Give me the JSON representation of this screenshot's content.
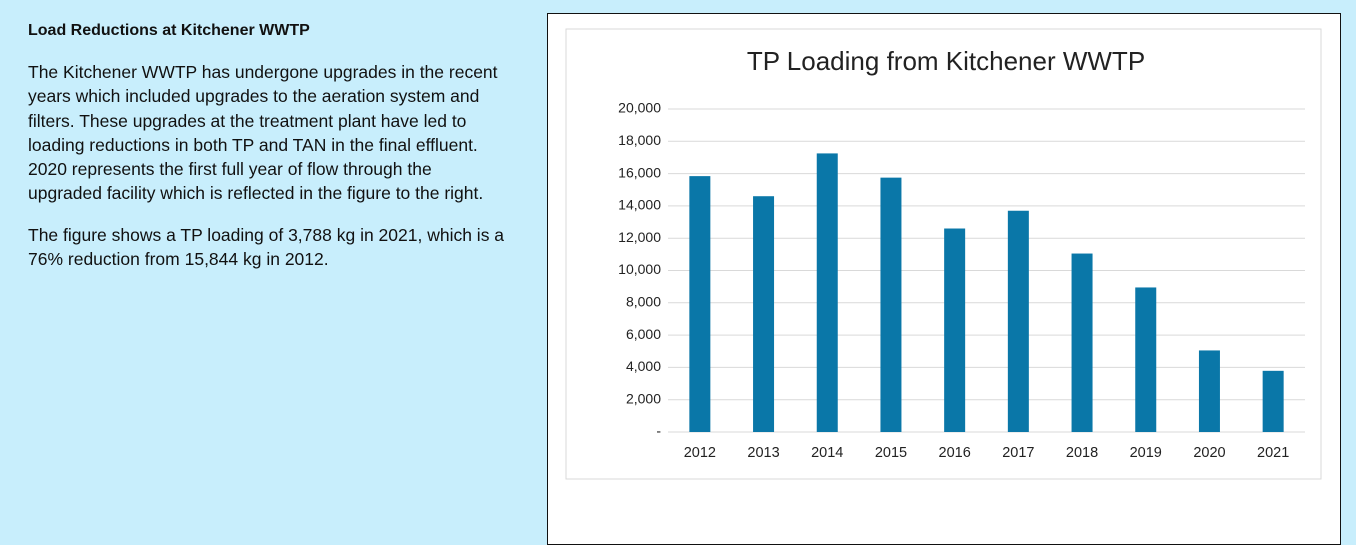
{
  "panel": {
    "heading": "Load Reductions at Kitchener WWTP",
    "paragraphs": [
      "The Kitchener WWTP has undergone upgrades in the recent years which included upgrades to the aeration system and filters. These upgrades at the treatment plant have led to loading reductions in both TP and TAN in the final effluent. 2020 represents the first full year of flow through the upgraded facility which is reflected in the figure to the right.",
      "The figure shows a TP loading of 3,788 kg in 2021, which is a 76% reduction from 15,844 kg in 2012."
    ]
  },
  "chart_data": {
    "type": "bar",
    "title": "TP Loading from Kitchener WWTP",
    "categories": [
      "2012",
      "2013",
      "2014",
      "2015",
      "2016",
      "2017",
      "2018",
      "2019",
      "2020",
      "2021"
    ],
    "values": [
      15844,
      14600,
      17250,
      15750,
      12600,
      13700,
      11050,
      8950,
      5050,
      3788
    ],
    "color": "#0a77a8",
    "ylim": [
      0,
      20000
    ],
    "yticks": [
      {
        "value": 0,
        "label": "-"
      },
      {
        "value": 2000,
        "label": "2,000"
      },
      {
        "value": 4000,
        "label": "4,000"
      },
      {
        "value": 6000,
        "label": "6,000"
      },
      {
        "value": 8000,
        "label": "8,000"
      },
      {
        "value": 10000,
        "label": "10,000"
      },
      {
        "value": 12000,
        "label": "12,000"
      },
      {
        "value": 14000,
        "label": "14,000"
      },
      {
        "value": 16000,
        "label": "16,000"
      },
      {
        "value": 18000,
        "label": "18,000"
      },
      {
        "value": 20000,
        "label": "20,000"
      }
    ],
    "grid": true
  }
}
